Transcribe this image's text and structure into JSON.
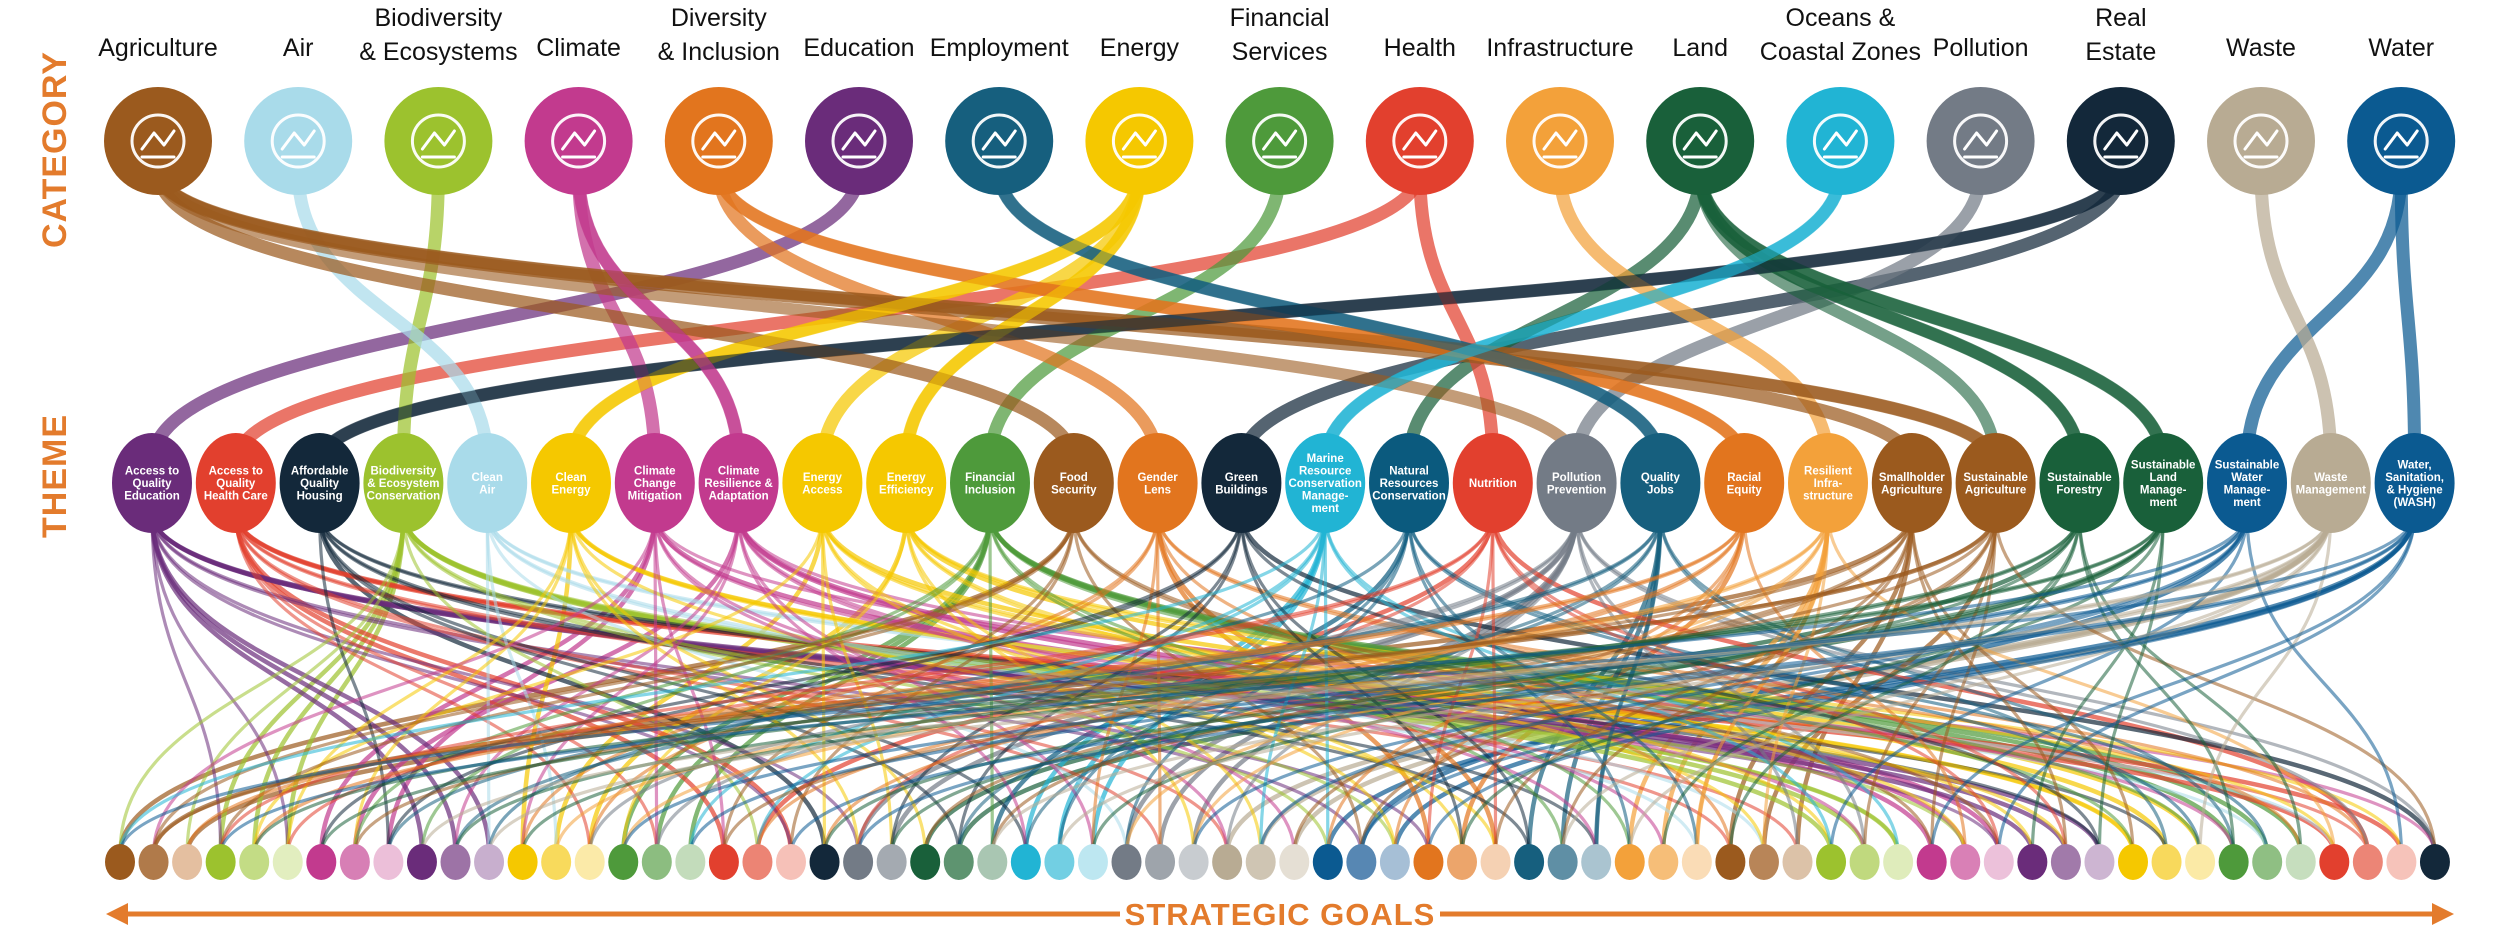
{
  "side_labels": {
    "category": "CATEGORY",
    "theme": "THEME"
  },
  "bottom_label": "STRATEGIC GOALS",
  "categories": [
    {
      "label": [
        "Agriculture"
      ],
      "color": "#9b5a1e",
      "icon": "wheat-icon"
    },
    {
      "label": [
        "Air"
      ],
      "color": "#a9dbea",
      "icon": "cloud-sun-icon"
    },
    {
      "label": [
        "Biodiversity",
        "& Ecosystems"
      ],
      "color": "#9cc22e",
      "icon": "plant-bird-icon"
    },
    {
      "label": [
        "Climate"
      ],
      "color": "#c23a8e",
      "icon": "thermometer-globe-icon"
    },
    {
      "label": [
        "Diversity",
        "& Inclusion"
      ],
      "color": "#e2751e",
      "icon": "venn-circles-icon"
    },
    {
      "label": [
        "Education"
      ],
      "color": "#6a2c7a",
      "icon": "reading-book-icon"
    },
    {
      "label": [
        "Employment"
      ],
      "color": "#165f7e",
      "icon": "handshake-icon"
    },
    {
      "label": [
        "Energy"
      ],
      "color": "#f5c800",
      "icon": "wind-turbine-icon"
    },
    {
      "label": [
        "Financial",
        "Services"
      ],
      "color": "#4e9a3b",
      "icon": "money-hand-icon"
    },
    {
      "label": [
        "Health"
      ],
      "color": "#e2402e",
      "icon": "stethoscope-icon"
    },
    {
      "label": [
        "Infrastructure"
      ],
      "color": "#f3a13a",
      "icon": "building-blocks-icon"
    },
    {
      "label": [
        "Land"
      ],
      "color": "#19603a",
      "icon": "mountains-fields-icon"
    },
    {
      "label": [
        "Oceans &",
        "Coastal Zones"
      ],
      "color": "#21b4d4",
      "icon": "fish-coral-icon"
    },
    {
      "label": [
        "Pollution"
      ],
      "color": "#737b86",
      "icon": "factory-icon"
    },
    {
      "label": [
        "Real",
        "Estate"
      ],
      "color": "#13283a",
      "icon": "apartment-icon"
    },
    {
      "label": [
        "Waste"
      ],
      "color": "#b8ab93",
      "icon": "trash-bin-icon"
    },
    {
      "label": [
        "Water"
      ],
      "color": "#0b5a91",
      "icon": "water-drops-icon"
    }
  ],
  "themes": [
    {
      "label": [
        "Access to",
        "Quality",
        "Education"
      ],
      "color": "#6a2c7a",
      "cat": 5
    },
    {
      "label": [
        "Access to",
        "Quality",
        "Health Care"
      ],
      "color": "#e2402e",
      "cat": 9
    },
    {
      "label": [
        "Affordable",
        "Quality",
        "Housing"
      ],
      "color": "#13283a",
      "cat": 14
    },
    {
      "label": [
        "Biodiversity",
        "& Ecosystem",
        "Conservation"
      ],
      "color": "#9cc22e",
      "cat": 2
    },
    {
      "label": [
        "Clean",
        "Air"
      ],
      "color": "#a9dbea",
      "cat": 1
    },
    {
      "label": [
        "Clean",
        "Energy"
      ],
      "color": "#f5c800",
      "cat": 7
    },
    {
      "label": [
        "Climate",
        "Change",
        "Mitigation"
      ],
      "color": "#c23a8e",
      "cat": 3
    },
    {
      "label": [
        "Climate",
        "Resilience &",
        "Adaptation"
      ],
      "color": "#c23a8e",
      "cat": 3
    },
    {
      "label": [
        "Energy",
        "Access"
      ],
      "color": "#f5c800",
      "cat": 7
    },
    {
      "label": [
        "Energy",
        "Efficiency"
      ],
      "color": "#f5c800",
      "cat": 7
    },
    {
      "label": [
        "Financial",
        "Inclusion"
      ],
      "color": "#4e9a3b",
      "cat": 8
    },
    {
      "label": [
        "Food",
        "Security"
      ],
      "color": "#9b5a1e",
      "cat": 0
    },
    {
      "label": [
        "Gender",
        "Lens"
      ],
      "color": "#e2751e",
      "cat": 4
    },
    {
      "label": [
        "Green",
        "Buildings"
      ],
      "color": "#13283a",
      "cat": 14
    },
    {
      "label": [
        "Marine",
        "Resource",
        "Conservation",
        "Manage-",
        "ment"
      ],
      "color": "#21b4d4",
      "cat": 12
    },
    {
      "label": [
        "Natural",
        "Resources",
        "Conservation"
      ],
      "color": "#0b5a7e",
      "cat": 11
    },
    {
      "label": [
        "Nutrition"
      ],
      "color": "#e2402e",
      "cat": 9
    },
    {
      "label": [
        "Pollution",
        "Prevention"
      ],
      "color": "#737b86",
      "cat": 13
    },
    {
      "label": [
        "Quality",
        "Jobs"
      ],
      "color": "#165f7e",
      "cat": 6
    },
    {
      "label": [
        "Racial",
        "Equity"
      ],
      "color": "#e2751e",
      "cat": 4
    },
    {
      "label": [
        "Resilient",
        "Infra-",
        "structure"
      ],
      "color": "#f3a13a",
      "cat": 10
    },
    {
      "label": [
        "Smallholder",
        "Agriculture"
      ],
      "color": "#9b5a1e",
      "cat": 0
    },
    {
      "label": [
        "Sustainable",
        "Agriculture"
      ],
      "color": "#9b5a1e",
      "cat": 0
    },
    {
      "label": [
        "Sustainable",
        "Forestry"
      ],
      "color": "#19603a",
      "cat": 11
    },
    {
      "label": [
        "Sustainable",
        "Land",
        "Manage-",
        "ment"
      ],
      "color": "#19603a",
      "cat": 11
    },
    {
      "label": [
        "Sustainable",
        "Water",
        "Manage-",
        "ment"
      ],
      "color": "#0b5a91",
      "cat": 16
    },
    {
      "label": [
        "Waste",
        "Management"
      ],
      "color": "#b8ab93",
      "cat": 15
    },
    {
      "label": [
        "Water,",
        "Sanitation,",
        "& Hygiene",
        "(WASH)"
      ],
      "color": "#0b5a91",
      "cat": 16
    }
  ],
  "extra_category_links": [
    {
      "cat": 0,
      "theme": 22
    },
    {
      "cat": 0,
      "theme": 17
    },
    {
      "cat": 4,
      "theme": 19
    },
    {
      "cat": 11,
      "theme": 24
    },
    {
      "cat": 11,
      "theme": 23
    },
    {
      "cat": 11,
      "theme": 22
    },
    {
      "cat": 6,
      "theme": 18
    },
    {
      "cat": 7,
      "theme": 9
    },
    {
      "cat": 7,
      "theme": 5
    },
    {
      "cat": 14,
      "theme": 2
    },
    {
      "cat": 3,
      "theme": 7
    },
    {
      "cat": 12,
      "theme": 14
    }
  ],
  "goals": [
    {
      "color": "#9b5a1e",
      "theme": 11
    },
    {
      "color": "#b07a4a",
      "theme": 21
    },
    {
      "color": "#e4bfa0",
      "theme": 22
    },
    {
      "color": "#9cc22e",
      "theme": 3
    },
    {
      "color": "#c3dc85",
      "theme": 3
    },
    {
      "color": "#e2eebf",
      "theme": 3
    },
    {
      "color": "#c23a8e",
      "theme": 6
    },
    {
      "color": "#d77fb5",
      "theme": 7
    },
    {
      "color": "#ecbfd9",
      "theme": 6
    },
    {
      "color": "#6a2c7a",
      "theme": 0
    },
    {
      "color": "#9d73a6",
      "theme": 0
    },
    {
      "color": "#c8afce",
      "theme": 0
    },
    {
      "color": "#f5c800",
      "theme": 5
    },
    {
      "color": "#f8da5c",
      "theme": 8
    },
    {
      "color": "#fbeaa8",
      "theme": 9
    },
    {
      "color": "#4e9a3b",
      "theme": 10
    },
    {
      "color": "#8cbd80",
      "theme": 10
    },
    {
      "color": "#c3dcbb",
      "theme": 10
    },
    {
      "color": "#e2402e",
      "theme": 1
    },
    {
      "color": "#ec8474",
      "theme": 16
    },
    {
      "color": "#f6c1b8",
      "theme": 1
    },
    {
      "color": "#13283a",
      "theme": 2
    },
    {
      "color": "#737b86",
      "theme": 17
    },
    {
      "color": "#a4aab1",
      "theme": 17
    },
    {
      "color": "#19603a",
      "theme": 23
    },
    {
      "color": "#5e9470",
      "theme": 24
    },
    {
      "color": "#a9c6b2",
      "theme": 15
    },
    {
      "color": "#21b4d4",
      "theme": 14
    },
    {
      "color": "#72cfe3",
      "theme": 14
    },
    {
      "color": "#bde7f1",
      "theme": 14
    },
    {
      "color": "#737b86",
      "theme": 17
    },
    {
      "color": "#9ea4ab",
      "theme": 17
    },
    {
      "color": "#c8ccd0",
      "theme": 17
    },
    {
      "color": "#b8ab93",
      "theme": 26
    },
    {
      "color": "#cfc5b3",
      "theme": 26
    },
    {
      "color": "#e5dfd4",
      "theme": 26
    },
    {
      "color": "#0b5a91",
      "theme": 27
    },
    {
      "color": "#5787b3",
      "theme": 25
    },
    {
      "color": "#a6bfd6",
      "theme": 27
    },
    {
      "color": "#e2751e",
      "theme": 12
    },
    {
      "color": "#eca56b",
      "theme": 19
    },
    {
      "color": "#f5d1b3",
      "theme": 12
    },
    {
      "color": "#165f7e",
      "theme": 18
    },
    {
      "color": "#5f8fa5",
      "theme": 18
    },
    {
      "color": "#aac4d0",
      "theme": 18
    },
    {
      "color": "#f3a13a",
      "theme": 20
    },
    {
      "color": "#f6be78",
      "theme": 20
    },
    {
      "color": "#fadcb6",
      "theme": 20
    },
    {
      "color": "#9b5a1e",
      "theme": 21
    },
    {
      "color": "#b88558",
      "theme": 22
    },
    {
      "color": "#dcc2a8",
      "theme": 21
    },
    {
      "color": "#9cc22e",
      "theme": 3
    },
    {
      "color": "#c0d97e",
      "theme": 3
    },
    {
      "color": "#dfecbb",
      "theme": 3
    },
    {
      "color": "#c23a8e",
      "theme": 7
    },
    {
      "color": "#d980b6",
      "theme": 6
    },
    {
      "color": "#ecc1da",
      "theme": 7
    },
    {
      "color": "#6a2c7a",
      "theme": 0
    },
    {
      "color": "#a17aaa",
      "theme": 0
    },
    {
      "color": "#cdb5d2",
      "theme": 0
    },
    {
      "color": "#f5c800",
      "theme": 5
    },
    {
      "color": "#f8d95c",
      "theme": 8
    },
    {
      "color": "#fbeaa6",
      "theme": 9
    },
    {
      "color": "#4e9a3b",
      "theme": 10
    },
    {
      "color": "#8fbf83",
      "theme": 10
    },
    {
      "color": "#c6deBe",
      "theme": 10
    },
    {
      "color": "#e2402e",
      "theme": 1
    },
    {
      "color": "#ec8576",
      "theme": 16
    },
    {
      "color": "#f6c3ba",
      "theme": 1
    },
    {
      "color": "#13283a",
      "theme": 13
    }
  ]
}
